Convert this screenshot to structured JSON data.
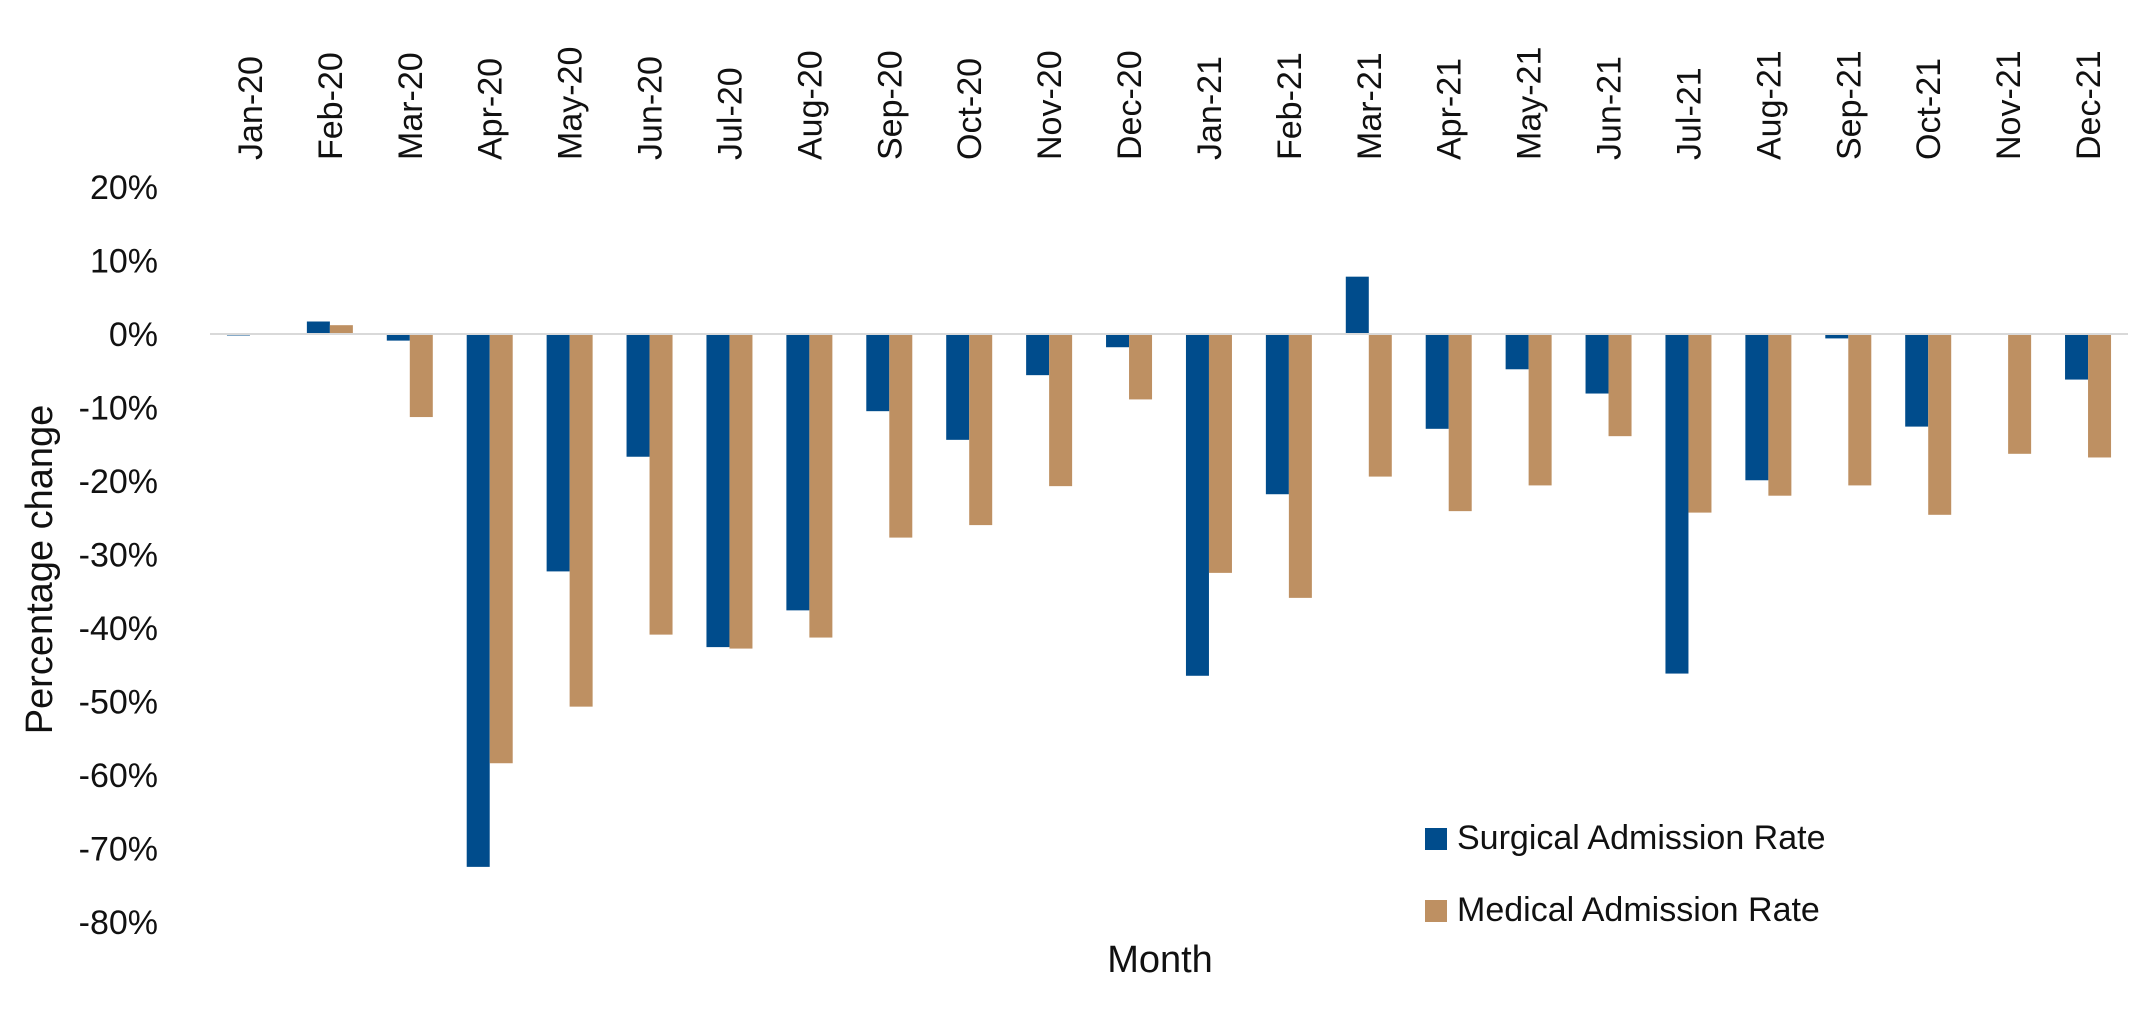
{
  "chart_data": {
    "type": "bar",
    "xlabel": "Month",
    "ylabel": "Percentage change",
    "ylim": [
      -80,
      20
    ],
    "y_ticks": [
      20,
      10,
      0,
      -10,
      -20,
      -30,
      -40,
      -50,
      -60,
      -70,
      -80
    ],
    "y_tick_labels": [
      "20%",
      "10%",
      "0%",
      "-10%",
      "-20%",
      "-30%",
      "-40%",
      "-50%",
      "-60%",
      "-70%",
      "-80%"
    ],
    "x_axis_position": "top",
    "x_tick_rotation": "vertical",
    "grid": false,
    "legend_position": "bottom-right",
    "categories": [
      "Jan-20",
      "Feb-20",
      "Mar-20",
      "Apr-20",
      "May-20",
      "Jun-20",
      "Jul-20",
      "Aug-20",
      "Sep-20",
      "Oct-20",
      "Nov-20",
      "Dec-20",
      "Jan-21",
      "Feb-21",
      "Mar-21",
      "Apr-21",
      "May-21",
      "Jun-21",
      "Jul-21",
      "Aug-21",
      "Sep-21",
      "Oct-21",
      "Nov-21",
      "Dec-21"
    ],
    "series": [
      {
        "name": "Surgical Admission Rate",
        "color": "#004C8C",
        "values": [
          -0.2,
          1.7,
          -0.9,
          -72.5,
          -32.3,
          -16.7,
          -42.6,
          -37.6,
          -10.5,
          -14.4,
          -5.6,
          -1.8,
          -46.5,
          -21.8,
          7.8,
          -12.9,
          -4.8,
          -8.1,
          -46.2,
          -19.9,
          -0.6,
          -12.6,
          0.0,
          -6.2
        ]
      },
      {
        "name": "Medical Admission Rate",
        "color": "#BE9062",
        "values": [
          0.0,
          1.2,
          -11.3,
          -58.4,
          -50.7,
          -40.9,
          -42.8,
          -41.3,
          -27.7,
          -26.0,
          -20.7,
          -8.9,
          -32.5,
          -35.9,
          -19.4,
          -24.1,
          -20.6,
          -13.9,
          -24.3,
          -22.0,
          -20.6,
          -24.6,
          -16.3,
          -16.8
        ]
      }
    ]
  }
}
